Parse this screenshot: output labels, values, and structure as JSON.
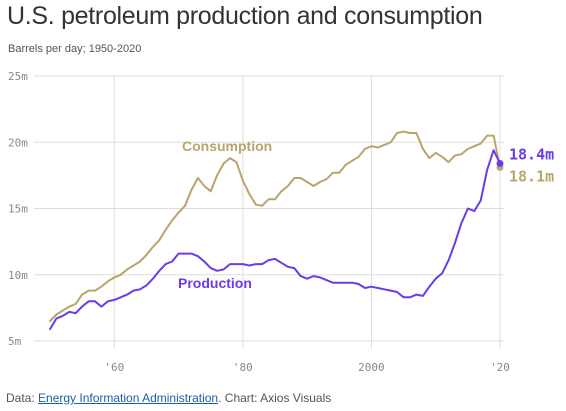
{
  "header": {
    "title": "U.S. petroleum production and consumption",
    "subtitle": "Barrels per day; 1950-2020"
  },
  "footer": {
    "data_prefix": "Data: ",
    "source_link": "Energy Information Administration",
    "suffix": ". Chart: Axios Visuals"
  },
  "colors": {
    "consumption": "#b9a46a",
    "production": "#6a3ce8",
    "grid": "#dddddd",
    "axis_text": "#888888"
  },
  "chart_data": {
    "type": "line",
    "title": "U.S. petroleum production and consumption",
    "subtitle": "Barrels per day; 1950-2020",
    "xlim": [
      1950,
      2020
    ],
    "ylim": [
      5,
      25
    ],
    "y_ticks": [
      5,
      10,
      15,
      20,
      25
    ],
    "y_tick_labels": [
      "5m",
      "10m",
      "15m",
      "20m",
      "25m"
    ],
    "x_ticks": [
      1960,
      1980,
      2000,
      2020
    ],
    "x_tick_labels": [
      "'60",
      "'80",
      "2000",
      "'20"
    ],
    "grid": true,
    "series": [
      {
        "name": "Consumption",
        "end_label": "18.1m",
        "x": [
          1950,
          1951,
          1952,
          1953,
          1954,
          1955,
          1956,
          1957,
          1958,
          1959,
          1960,
          1961,
          1962,
          1963,
          1964,
          1965,
          1966,
          1967,
          1968,
          1969,
          1970,
          1971,
          1972,
          1973,
          1974,
          1975,
          1976,
          1977,
          1978,
          1979,
          1980,
          1981,
          1982,
          1983,
          1984,
          1985,
          1986,
          1987,
          1988,
          1989,
          1990,
          1991,
          1992,
          1993,
          1994,
          1995,
          1996,
          1997,
          1998,
          1999,
          2000,
          2001,
          2002,
          2003,
          2004,
          2005,
          2006,
          2007,
          2008,
          2009,
          2010,
          2011,
          2012,
          2013,
          2014,
          2015,
          2016,
          2017,
          2018,
          2019,
          2020
        ],
        "values": [
          6.5,
          7.0,
          7.3,
          7.6,
          7.8,
          8.5,
          8.8,
          8.8,
          9.1,
          9.5,
          9.8,
          10.0,
          10.4,
          10.7,
          11.0,
          11.5,
          12.1,
          12.6,
          13.4,
          14.1,
          14.7,
          15.2,
          16.4,
          17.3,
          16.7,
          16.3,
          17.5,
          18.4,
          18.8,
          18.5,
          17.1,
          16.1,
          15.3,
          15.2,
          15.7,
          15.7,
          16.3,
          16.7,
          17.3,
          17.3,
          17.0,
          16.7,
          17.0,
          17.2,
          17.7,
          17.7,
          18.3,
          18.6,
          18.9,
          19.5,
          19.7,
          19.6,
          19.8,
          20.0,
          20.7,
          20.8,
          20.7,
          20.7,
          19.5,
          18.8,
          19.2,
          18.9,
          18.5,
          19.0,
          19.1,
          19.5,
          19.7,
          19.9,
          20.5,
          20.5,
          18.1
        ]
      },
      {
        "name": "Production",
        "end_label": "18.4m",
        "x": [
          1950,
          1951,
          1952,
          1953,
          1954,
          1955,
          1956,
          1957,
          1958,
          1959,
          1960,
          1961,
          1962,
          1963,
          1964,
          1965,
          1966,
          1967,
          1968,
          1969,
          1970,
          1971,
          1972,
          1973,
          1974,
          1975,
          1976,
          1977,
          1978,
          1979,
          1980,
          1981,
          1982,
          1983,
          1984,
          1985,
          1986,
          1987,
          1988,
          1989,
          1990,
          1991,
          1992,
          1993,
          1994,
          1995,
          1996,
          1997,
          1998,
          1999,
          2000,
          2001,
          2002,
          2003,
          2004,
          2005,
          2006,
          2007,
          2008,
          2009,
          2010,
          2011,
          2012,
          2013,
          2014,
          2015,
          2016,
          2017,
          2018,
          2019,
          2020
        ],
        "values": [
          5.9,
          6.7,
          6.9,
          7.2,
          7.1,
          7.6,
          8.0,
          8.0,
          7.6,
          8.0,
          8.1,
          8.3,
          8.5,
          8.8,
          8.9,
          9.2,
          9.7,
          10.3,
          10.8,
          11.0,
          11.6,
          11.6,
          11.6,
          11.4,
          11.0,
          10.5,
          10.3,
          10.4,
          10.8,
          10.8,
          10.8,
          10.7,
          10.8,
          10.8,
          11.1,
          11.2,
          10.9,
          10.6,
          10.5,
          9.9,
          9.7,
          9.9,
          9.8,
          9.6,
          9.4,
          9.4,
          9.4,
          9.4,
          9.3,
          9.0,
          9.1,
          9.0,
          8.9,
          8.8,
          8.7,
          8.3,
          8.3,
          8.5,
          8.4,
          9.1,
          9.7,
          10.1,
          11.1,
          12.4,
          13.9,
          15.0,
          14.8,
          15.6,
          17.9,
          19.4,
          18.4
        ]
      }
    ],
    "annotations": [
      {
        "text": "Consumption",
        "series": "Consumption"
      },
      {
        "text": "Production",
        "series": "Production"
      }
    ]
  }
}
